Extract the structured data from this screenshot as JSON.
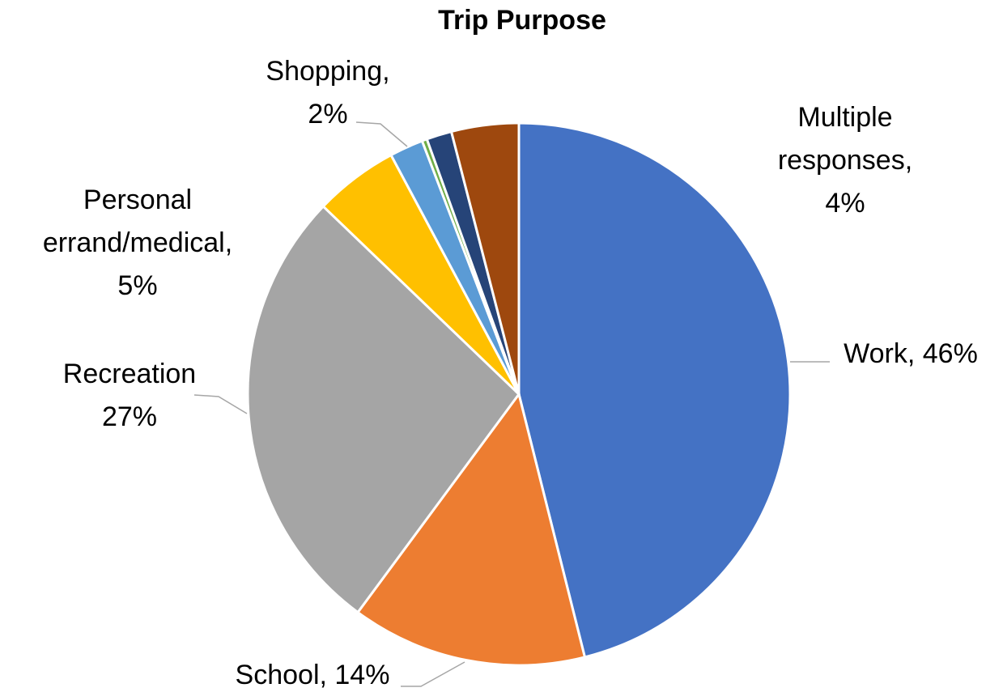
{
  "chart_data": {
    "type": "pie",
    "title": "Trip Purpose",
    "slices": [
      {
        "key": "work",
        "value": 46,
        "color": "#4472C4",
        "label_lines": [
          "Work, 46%"
        ]
      },
      {
        "key": "school",
        "value": 14,
        "color": "#ED7D31",
        "label_lines": [
          "School, 14%"
        ]
      },
      {
        "key": "recreation",
        "value": 27,
        "color": "#A5A5A5",
        "label_lines": [
          "Recreation",
          "27%"
        ]
      },
      {
        "key": "personal-errand-medical",
        "value": 5,
        "color": "#FFC000",
        "label_lines": [
          "Personal",
          "errand/medical,",
          "5%"
        ]
      },
      {
        "key": "shopping",
        "value": 2,
        "color": "#5B9BD5",
        "label_lines": [
          "Shopping,",
          "2%"
        ]
      },
      {
        "key": "unlabeled-small",
        "value": 0.3,
        "color": "#70AD47",
        "label_lines": []
      },
      {
        "key": "unlabeled-navy",
        "value": 1.5,
        "color": "#264478",
        "label_lines": []
      },
      {
        "key": "multiple-responses",
        "value": 4,
        "color": "#9E480E",
        "label_lines": [
          "Multiple",
          "responses,",
          "4%"
        ]
      }
    ]
  }
}
